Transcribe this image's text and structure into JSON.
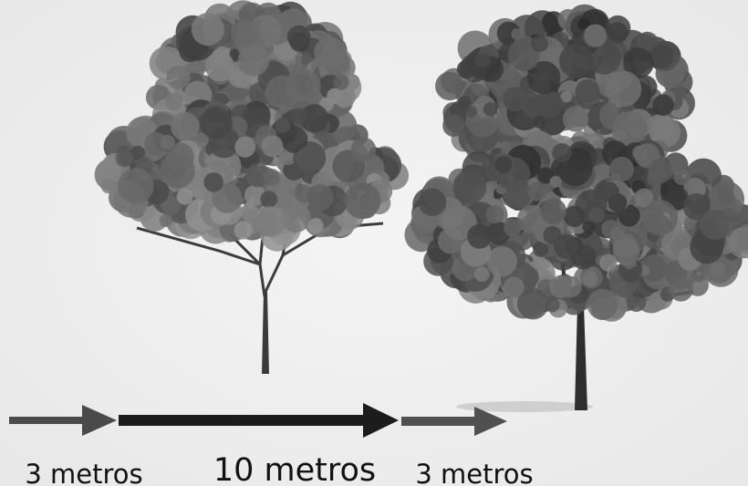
{
  "labels": [
    "3 metros",
    "10 metros",
    "3 metros"
  ]
}
